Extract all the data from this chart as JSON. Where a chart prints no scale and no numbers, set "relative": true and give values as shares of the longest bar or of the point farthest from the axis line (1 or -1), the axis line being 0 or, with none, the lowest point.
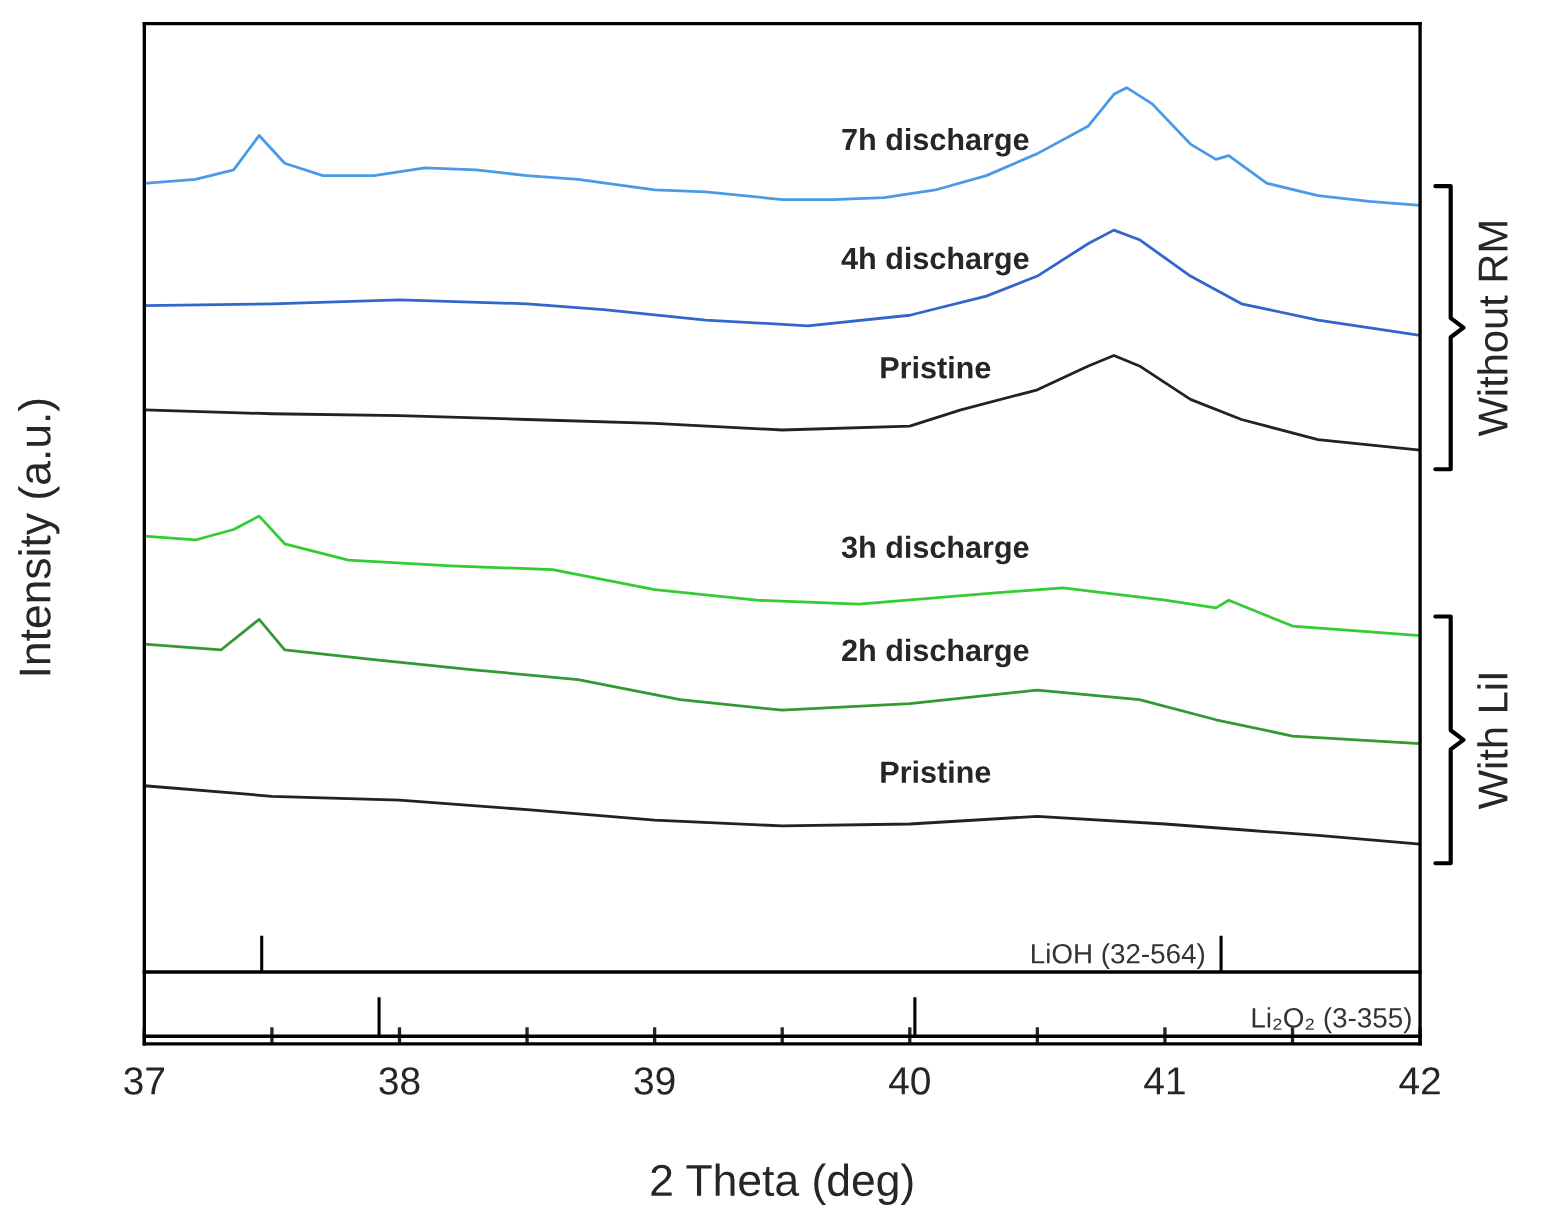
{
  "chart_data": [
    {
      "type": "line",
      "relative": true,
      "xlabel": "2 Theta (deg)",
      "ylabel": "Intensity (a.u.)",
      "xlim": [
        37,
        42
      ],
      "xticks": [
        37,
        {
          "value": 37.5,
          "label": null
        },
        38,
        {
          "value": 38.5,
          "label": null
        },
        39,
        {
          "value": 39.5,
          "label": null
        },
        40,
        {
          "value": 40.5,
          "label": null
        },
        41,
        {
          "value": 41.5,
          "label": null
        },
        42
      ],
      "grid": false,
      "series": [
        {
          "name": "7h discharge",
          "color": "#4a9ae8",
          "x": [
            37.0,
            37.2,
            37.35,
            37.45,
            37.55,
            37.7,
            37.9,
            38.1,
            38.3,
            38.5,
            38.7,
            39.0,
            39.2,
            39.5,
            39.7,
            39.9,
            40.1,
            40.3,
            40.5,
            40.7,
            40.8,
            40.85,
            40.95,
            41.1,
            41.2,
            41.25,
            41.4,
            41.6,
            41.8,
            42.0
          ],
          "values": [
            0.9,
            0.904,
            0.914,
            0.95,
            0.921,
            0.908,
            0.908,
            0.916,
            0.914,
            0.908,
            0.904,
            0.893,
            0.891,
            0.883,
            0.883,
            0.885,
            0.893,
            0.908,
            0.931,
            0.96,
            0.993,
            1.0,
            0.983,
            0.941,
            0.925,
            0.929,
            0.9,
            0.887,
            0.881,
            0.877
          ]
        },
        {
          "name": "4h discharge",
          "color": "#3366cc",
          "x": [
            37.0,
            37.5,
            38.0,
            38.5,
            38.8,
            39.2,
            39.6,
            40.0,
            40.3,
            40.5,
            40.7,
            40.8,
            40.9,
            41.1,
            41.3,
            41.6,
            42.0
          ],
          "values": [
            0.772,
            0.774,
            0.778,
            0.774,
            0.768,
            0.757,
            0.751,
            0.762,
            0.782,
            0.803,
            0.837,
            0.851,
            0.841,
            0.803,
            0.774,
            0.757,
            0.741
          ]
        },
        {
          "name": "Pristine",
          "color": "#222222",
          "x": [
            37.0,
            37.5,
            38.0,
            38.5,
            39.0,
            39.5,
            40.0,
            40.2,
            40.5,
            40.7,
            40.8,
            40.9,
            41.1,
            41.3,
            41.6,
            42.0
          ],
          "values": [
            0.663,
            0.659,
            0.657,
            0.653,
            0.649,
            0.642,
            0.646,
            0.663,
            0.684,
            0.709,
            0.72,
            0.709,
            0.674,
            0.653,
            0.632,
            0.621
          ]
        },
        {
          "name": "3h discharge",
          "color": "#33cc33",
          "x": [
            37.0,
            37.2,
            37.35,
            37.45,
            37.55,
            37.8,
            38.2,
            38.6,
            39.0,
            39.4,
            39.8,
            40.3,
            40.6,
            41.0,
            41.2,
            41.25,
            41.5,
            42.0
          ],
          "values": [
            0.531,
            0.527,
            0.538,
            0.552,
            0.523,
            0.506,
            0.5,
            0.496,
            0.475,
            0.464,
            0.46,
            0.471,
            0.477,
            0.464,
            0.456,
            0.464,
            0.437,
            0.427
          ]
        },
        {
          "name": "2h discharge",
          "color": "#339933",
          "x": [
            37.0,
            37.3,
            37.45,
            37.55,
            37.9,
            38.3,
            38.7,
            39.1,
            39.5,
            40.0,
            40.5,
            40.9,
            41.2,
            41.5,
            42.0
          ],
          "values": [
            0.418,
            0.412,
            0.444,
            0.412,
            0.402,
            0.391,
            0.381,
            0.36,
            0.349,
            0.356,
            0.37,
            0.36,
            0.339,
            0.322,
            0.314
          ]
        },
        {
          "name": "Pristine",
          "color": "#222222",
          "x": [
            37.0,
            37.5,
            38.0,
            38.5,
            39.0,
            39.5,
            40.0,
            40.5,
            41.0,
            41.3,
            41.6,
            42.0
          ],
          "values": [
            0.27,
            0.259,
            0.255,
            0.245,
            0.234,
            0.228,
            0.23,
            0.238,
            0.23,
            0.224,
            0.218,
            0.209
          ]
        }
      ],
      "annotations": [
        "Without RM",
        "With LiI"
      ]
    },
    {
      "type": "bar",
      "relative": true,
      "xlim": [
        37,
        42
      ],
      "tick_labels": false,
      "series": [
        {
          "color": "#000000",
          "x": [
            37.46,
            41.22
          ],
          "values": [
            1,
            1
          ]
        }
      ],
      "annotations": [
        "LiOH (32-564)"
      ]
    },
    {
      "type": "bar",
      "relative": true,
      "xlim": [
        37,
        42
      ],
      "tick_labels": false,
      "series": [
        {
          "color": "#000000",
          "x": [
            37.92,
            40.02
          ],
          "values": [
            1,
            1
          ]
        }
      ],
      "annotations": [
        "Li₂O₂ (3-355)"
      ]
    }
  ]
}
